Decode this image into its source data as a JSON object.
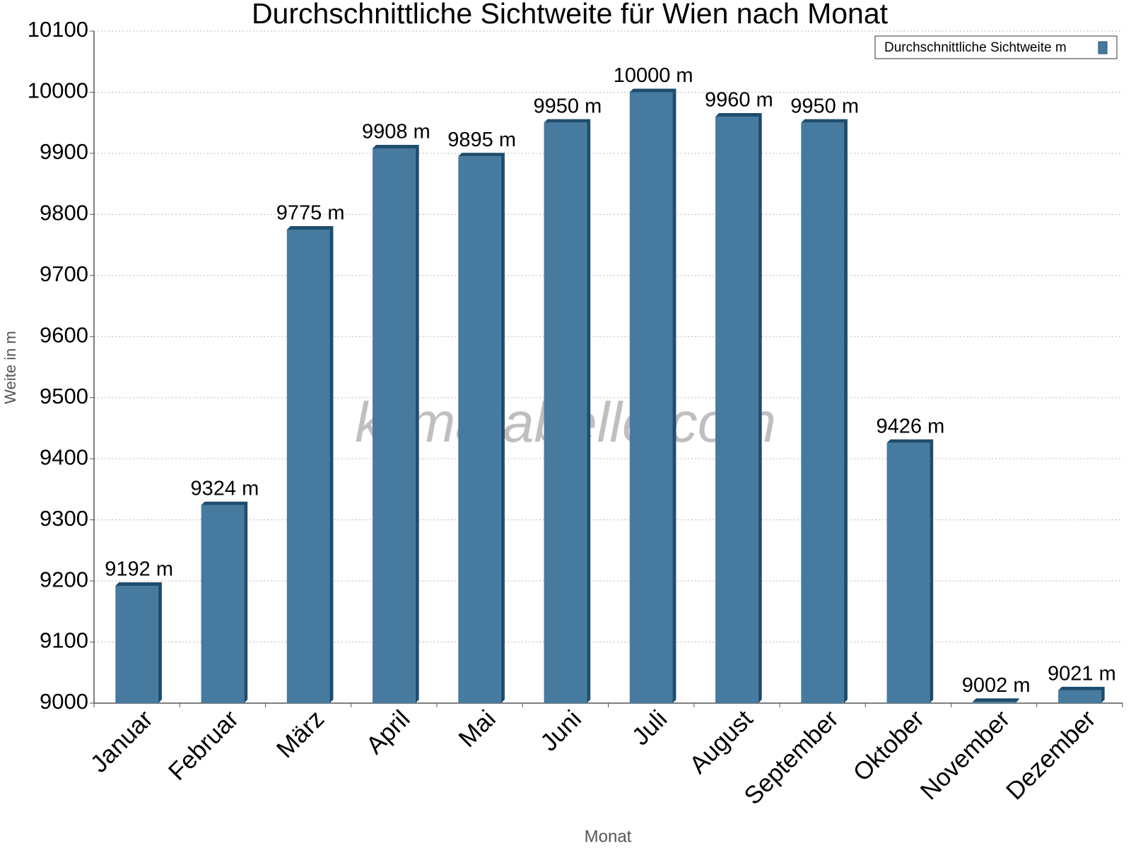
{
  "chart_data": {
    "type": "bar",
    "title": "Durchschnittliche Sichtweite für Wien nach Monat",
    "x_label": "Monat",
    "y_label": "Weite in m",
    "watermark": "klimatabelle.com",
    "categories": [
      "Januar",
      "Februar",
      "März",
      "April",
      "Mai",
      "Juni",
      "Juli",
      "August",
      "September",
      "Oktober",
      "November",
      "Dezember"
    ],
    "series": [
      {
        "name": "Durchschnittliche Sichtweite m",
        "color": "#467b9f",
        "values": [
          9192,
          9324,
          9775,
          9908,
          9895,
          9950,
          10000,
          9960,
          9950,
          9426,
          9002,
          9021
        ],
        "value_labels": [
          "9192 m",
          "9324 m",
          "9775 m",
          "9908 m",
          "9895 m",
          "9950 m",
          "10000 m",
          "9960 m",
          "9950 m",
          "9426 m",
          "9002 m",
          "9021 m"
        ]
      }
    ],
    "ylim": [
      9000,
      10100
    ],
    "yticks": [
      9000,
      9100,
      9200,
      9300,
      9400,
      9500,
      9600,
      9700,
      9800,
      9900,
      10000,
      10100
    ],
    "grid": true,
    "legend": "top-right"
  }
}
